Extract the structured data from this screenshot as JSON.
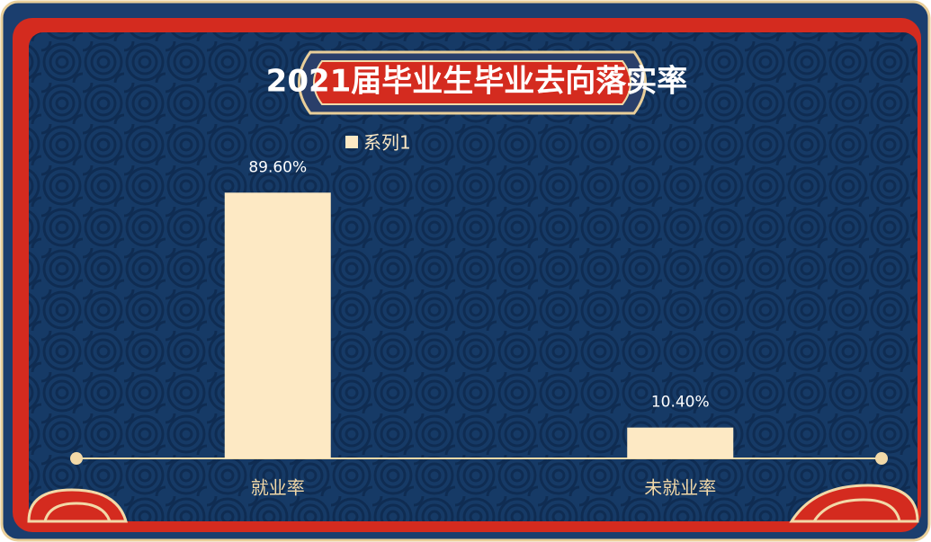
{
  "chart_data": {
    "type": "bar",
    "title": "2021届毕业生毕业去向落实率",
    "categories": [
      "就业率",
      "未就业率"
    ],
    "series": [
      {
        "name": "系列1",
        "color": "#fde9c4",
        "values": [
          89.6,
          10.4
        ],
        "value_labels": [
          "89.60%",
          "10.40%"
        ]
      }
    ],
    "ylim": [
      0,
      100
    ],
    "legend": "top"
  }
}
